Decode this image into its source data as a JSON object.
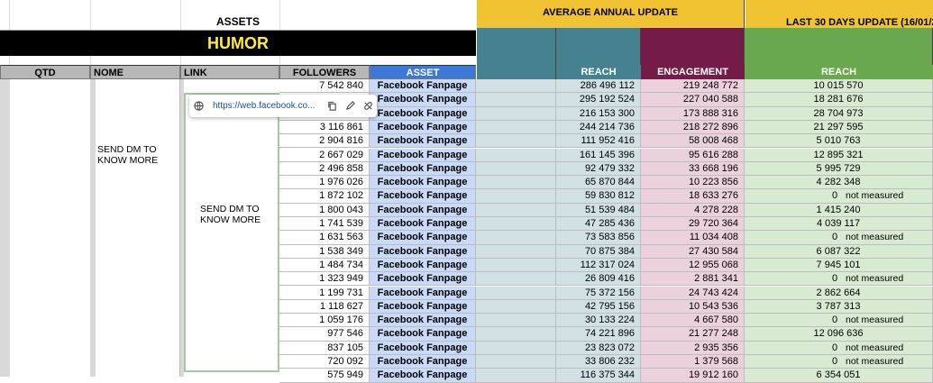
{
  "headers": {
    "assets": "ASSETS",
    "humor": "HUMOR",
    "avg_annual": "AVERAGE ANNUAL UPDATE",
    "last30": "LAST 30 DAYS UPDATE (16/01/2"
  },
  "columns": {
    "qtd": "QTD",
    "nome": "NOME",
    "link": "LINK",
    "followers": "FOLLOWERS",
    "asset": "ASSET",
    "reach": "REACH",
    "engagement": "ENGAGEMENT",
    "reach30": "REACH"
  },
  "merged": {
    "nome_text": "SEND DM TO KNOW MORE",
    "link_text": "SEND DM TO KNOW MORE"
  },
  "link_popup": {
    "url": "https://web.facebook.co..."
  },
  "rows": [
    {
      "followers": "7 542 840",
      "asset": "Facebook Fanpage",
      "reach": "286 496 112",
      "engagement": "219 248 772",
      "reach30": "10 015 570",
      "note": ""
    },
    {
      "followers": "",
      "asset": "Facebook Fanpage",
      "reach": "295 192 524",
      "engagement": "227 040 588",
      "reach30": "18 281 676",
      "note": ""
    },
    {
      "followers": "",
      "asset": "Facebook Fanpage",
      "reach": "216 153 300",
      "engagement": "173 888 316",
      "reach30": "28 704 973",
      "note": ""
    },
    {
      "followers": "3 116 861",
      "asset": "Facebook Fanpage",
      "reach": "244 214 736",
      "engagement": "218 272 896",
      "reach30": "21 297 595",
      "note": ""
    },
    {
      "followers": "2 904 816",
      "asset": "Facebook Fanpage",
      "reach": "111 952 416",
      "engagement": "58 008 468",
      "reach30": "5 010 763",
      "note": ""
    },
    {
      "followers": "2 667 029",
      "asset": "Facebook Fanpage",
      "reach": "161 145 396",
      "engagement": "95 616 288",
      "reach30": "12 895 321",
      "note": ""
    },
    {
      "followers": "2 496 858",
      "asset": "Facebook Fanpage",
      "reach": "92 479 332",
      "engagement": "33 668 196",
      "reach30": "5 995 729",
      "note": ""
    },
    {
      "followers": "1 976 026",
      "asset": "Facebook Fanpage",
      "reach": "65 870 844",
      "engagement": "10 223 856",
      "reach30": "4 282 348",
      "note": ""
    },
    {
      "followers": "1 872 102",
      "asset": "Facebook Fanpage",
      "reach": "59 830 812",
      "engagement": "18 633 276",
      "reach30": "0",
      "note": "not measured"
    },
    {
      "followers": "1 800 043",
      "asset": "Facebook Fanpage",
      "reach": "51 539 484",
      "engagement": "4 278 228",
      "reach30": "1 415 240",
      "note": ""
    },
    {
      "followers": "1 741 539",
      "asset": "Facebook Fanpage",
      "reach": "47 285 436",
      "engagement": "29 720 364",
      "reach30": "4 039 117",
      "note": ""
    },
    {
      "followers": "1 631 563",
      "asset": "Facebook Fanpage",
      "reach": "73 583 856",
      "engagement": "11 034 408",
      "reach30": "0",
      "note": "not measured"
    },
    {
      "followers": "1 538 349",
      "asset": "Facebook Fanpage",
      "reach": "70 875 384",
      "engagement": "27 430 584",
      "reach30": "6 087 322",
      "note": ""
    },
    {
      "followers": "1 484 734",
      "asset": "Facebook Fanpage",
      "reach": "112 317 024",
      "engagement": "12 955 068",
      "reach30": "7 945 101",
      "note": ""
    },
    {
      "followers": "1 323 949",
      "asset": "Facebook Fanpage",
      "reach": "26 809 416",
      "engagement": "2 881 341",
      "reach30": "0",
      "note": "not measured"
    },
    {
      "followers": "1 199 731",
      "asset": "Facebook Fanpage",
      "reach": "75 372 156",
      "engagement": "24 743 424",
      "reach30": "2 862 664",
      "note": ""
    },
    {
      "followers": "1 118 627",
      "asset": "Facebook Fanpage",
      "reach": "42 795 156",
      "engagement": "10 543 536",
      "reach30": "3 787 313",
      "note": ""
    },
    {
      "followers": "1 059 176",
      "asset": "Facebook Fanpage",
      "reach": "30 133 224",
      "engagement": "4 667 580",
      "reach30": "0",
      "note": "not measured"
    },
    {
      "followers": "977 546",
      "asset": "Facebook Fanpage",
      "reach": "74 221 896",
      "engagement": "21 277 248",
      "reach30": "12 096 636",
      "note": ""
    },
    {
      "followers": "837 105",
      "asset": "Facebook Fanpage",
      "reach": "23 823 072",
      "engagement": "2 935 356",
      "reach30": "0",
      "note": "not measured"
    },
    {
      "followers": "720 092",
      "asset": "Facebook Fanpage",
      "reach": "33 806 232",
      "engagement": "1 379 568",
      "reach30": "0",
      "note": "not measured"
    },
    {
      "followers": "575 949",
      "asset": "Facebook Fanpage",
      "reach": "116 375 344",
      "engagement": "19 912 160",
      "reach30": "6 354 051",
      "note": ""
    }
  ],
  "colors": {
    "yellow_header": "#f1c232",
    "teal": "#45818e",
    "maroon": "#741b47",
    "green": "#6aa84f",
    "asset_blue": "#3c78d8",
    "light_blue": "#cfe2f3",
    "light_pink": "#ead1dc",
    "light_green": "#d9ead3",
    "gray": "#d9d9d9"
  }
}
